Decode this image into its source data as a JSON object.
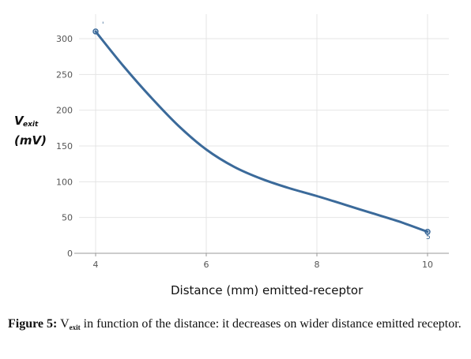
{
  "chart_data": {
    "type": "line",
    "xlabel_parts": {
      "main": "Distance (mm) emitted-receptor"
    },
    "ylabel_parts": {
      "symbol": "V",
      "subscript": "exit",
      "unit": "(mV)"
    },
    "xlim": [
      4,
      10
    ],
    "ylim": [
      0,
      320
    ],
    "xticks": [
      "4",
      "6",
      "8",
      "10"
    ],
    "yticks": [
      "0",
      "50",
      "100",
      "150",
      "200",
      "250",
      "300"
    ],
    "series": [
      {
        "color": "#3b6a9a",
        "x": [
          4.0,
          4.5,
          5.0,
          5.5,
          6.0,
          6.5,
          7.0,
          7.5,
          8.0,
          8.5,
          9.0,
          9.5,
          10.0
        ],
        "y": [
          310,
          262,
          218,
          178,
          145,
          121,
          104,
          91,
          80,
          68,
          56,
          44,
          30
        ]
      }
    ],
    "point_markers": [
      "'",
      "'",
      "'",
      "'",
      "5",
      "'"
    ],
    "grid": true,
    "colors": {
      "line": "#3b6a9a",
      "grid": "#e4e4e4",
      "axis": "#999999"
    }
  },
  "caption": {
    "label": "Figure 5:",
    "v_symbol": "V",
    "v_subscript": "exit",
    "text": " in function of the distance: it decreases on wider distance emitted receptor."
  }
}
